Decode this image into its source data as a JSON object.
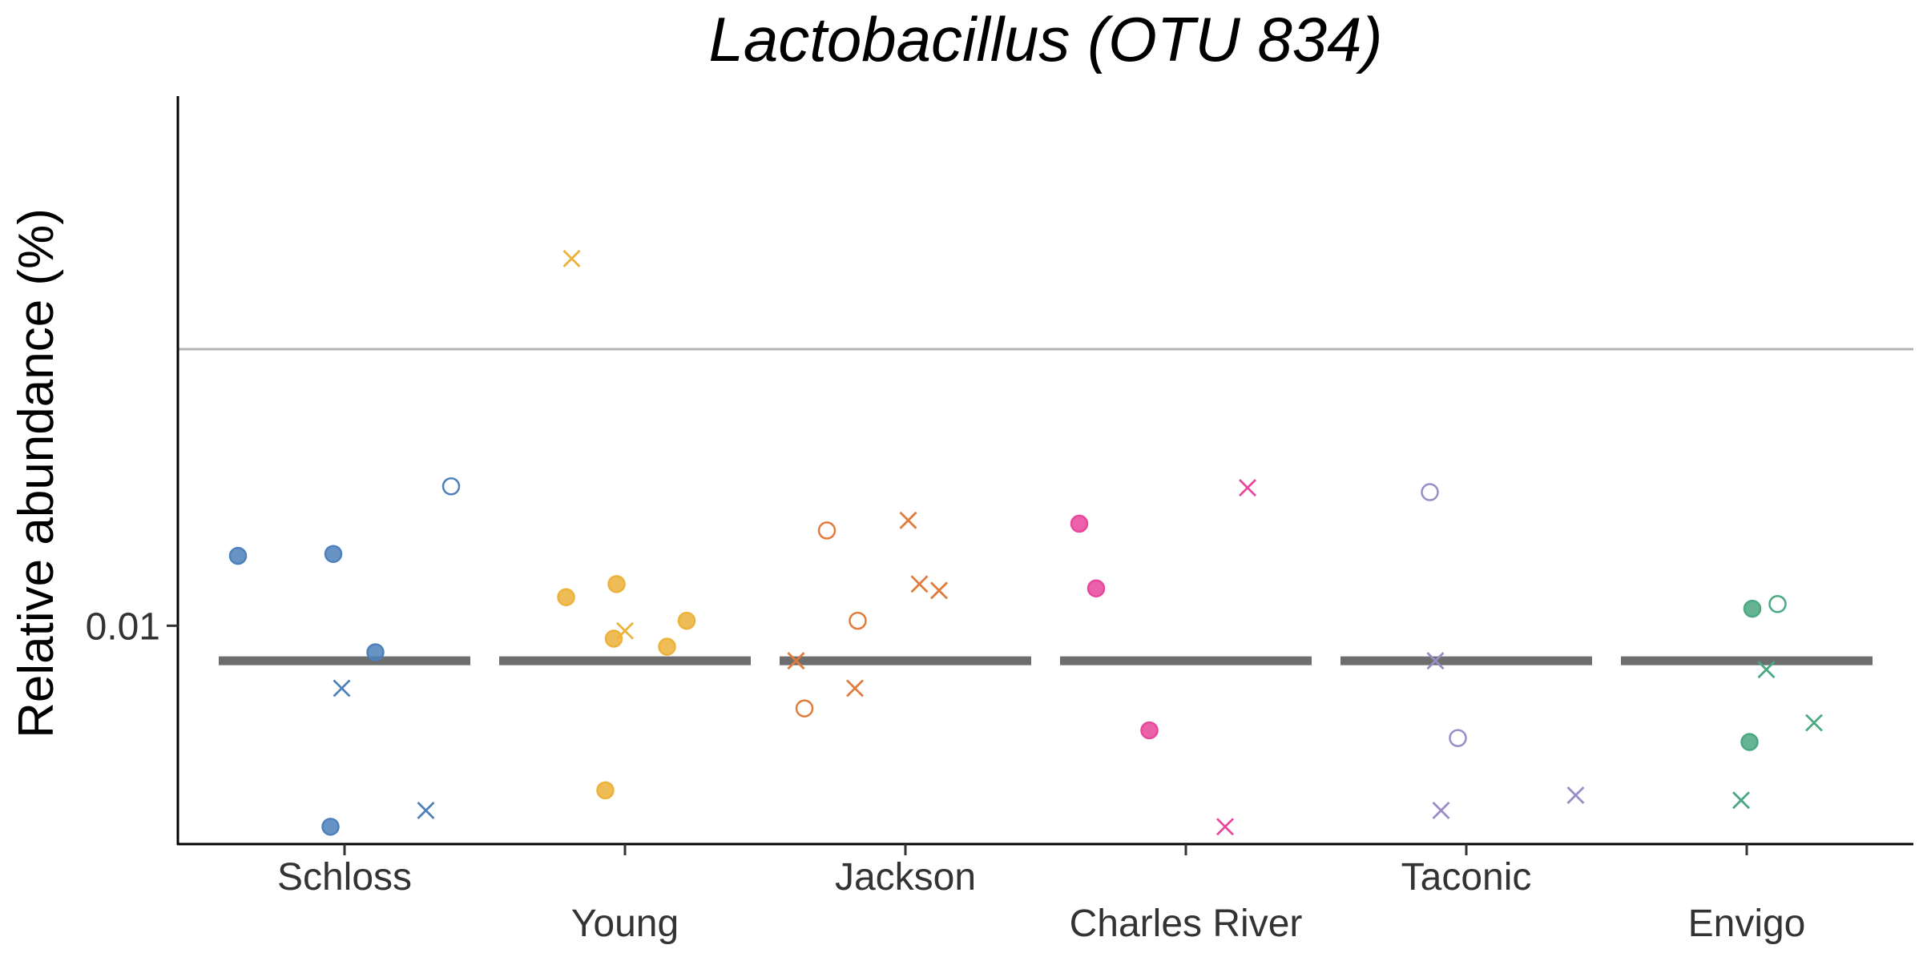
{
  "chart_data": {
    "type": "scatter",
    "title": "Lactobacillus (OTU 834)",
    "xlabel": "",
    "ylabel": "Relative abundance (%)",
    "y_scale": "log10",
    "y_ticks": [
      {
        "value": 0.01,
        "label": "0.01"
      }
    ],
    "ylim": [
      0.0042,
      0.082
    ],
    "reference_line": 0.03,
    "grid": false,
    "legend": "none",
    "categories": [
      "Schloss",
      "Young",
      "Jackson",
      "Charles River",
      "Taconic",
      "Envigo"
    ],
    "colors": [
      "#4e81bb",
      "#ecb23a",
      "#e07b3c",
      "#e8479c",
      "#9b8cc8",
      "#4aa883"
    ],
    "medians": [
      0.0087,
      0.0087,
      0.0087,
      0.0087,
      0.0087,
      0.0087
    ],
    "points": [
      [
        {
          "dx": -0.38,
          "y": 0.0132,
          "shape": "filled"
        },
        {
          "dx": -0.04,
          "y": 0.0133,
          "shape": "filled"
        },
        {
          "dx": 0.11,
          "y": 0.009,
          "shape": "filled"
        },
        {
          "dx": -0.05,
          "y": 0.0045,
          "shape": "filled"
        },
        {
          "dx": -0.01,
          "y": 0.0078,
          "shape": "cross"
        },
        {
          "dx": 0.29,
          "y": 0.0048,
          "shape": "cross"
        },
        {
          "dx": 0.38,
          "y": 0.0174,
          "shape": "open"
        }
      ],
      [
        {
          "dx": -0.21,
          "y": 0.0112,
          "shape": "filled"
        },
        {
          "dx": -0.03,
          "y": 0.0118,
          "shape": "filled"
        },
        {
          "dx": 0.22,
          "y": 0.0102,
          "shape": "filled"
        },
        {
          "dx": -0.04,
          "y": 0.0095,
          "shape": "filled"
        },
        {
          "dx": 0.15,
          "y": 0.0092,
          "shape": "filled"
        },
        {
          "dx": -0.07,
          "y": 0.0052,
          "shape": "filled"
        },
        {
          "dx": -0.19,
          "y": 0.043,
          "shape": "cross"
        },
        {
          "dx": 0.0,
          "y": 0.0098,
          "shape": "cross"
        }
      ],
      [
        {
          "dx": -0.28,
          "y": 0.0146,
          "shape": "open"
        },
        {
          "dx": -0.17,
          "y": 0.0102,
          "shape": "open"
        },
        {
          "dx": -0.36,
          "y": 0.0072,
          "shape": "open"
        },
        {
          "dx": 0.01,
          "y": 0.0152,
          "shape": "cross"
        },
        {
          "dx": 0.05,
          "y": 0.0118,
          "shape": "cross"
        },
        {
          "dx": 0.12,
          "y": 0.0115,
          "shape": "cross"
        },
        {
          "dx": -0.39,
          "y": 0.0087,
          "shape": "cross"
        },
        {
          "dx": -0.18,
          "y": 0.0078,
          "shape": "cross"
        }
      ],
      [
        {
          "dx": -0.38,
          "y": 0.015,
          "shape": "filled"
        },
        {
          "dx": -0.32,
          "y": 0.0116,
          "shape": "filled"
        },
        {
          "dx": -0.13,
          "y": 0.0066,
          "shape": "filled"
        },
        {
          "dx": 0.22,
          "y": 0.0173,
          "shape": "cross"
        },
        {
          "dx": 0.14,
          "y": 0.0045,
          "shape": "cross"
        }
      ],
      [
        {
          "dx": -0.13,
          "y": 0.017,
          "shape": "open"
        },
        {
          "dx": -0.03,
          "y": 0.0064,
          "shape": "open"
        },
        {
          "dx": -0.11,
          "y": 0.0087,
          "shape": "cross"
        },
        {
          "dx": -0.09,
          "y": 0.0048,
          "shape": "cross"
        },
        {
          "dx": 0.39,
          "y": 0.0051,
          "shape": "cross"
        }
      ],
      [
        {
          "dx": 0.02,
          "y": 0.0107,
          "shape": "filled"
        },
        {
          "dx": 0.01,
          "y": 0.0063,
          "shape": "filled"
        },
        {
          "dx": 0.11,
          "y": 0.0109,
          "shape": "open"
        },
        {
          "dx": 0.07,
          "y": 0.0084,
          "shape": "cross"
        },
        {
          "dx": 0.24,
          "y": 0.0068,
          "shape": "cross"
        },
        {
          "dx": -0.02,
          "y": 0.005,
          "shape": "cross"
        }
      ]
    ]
  }
}
